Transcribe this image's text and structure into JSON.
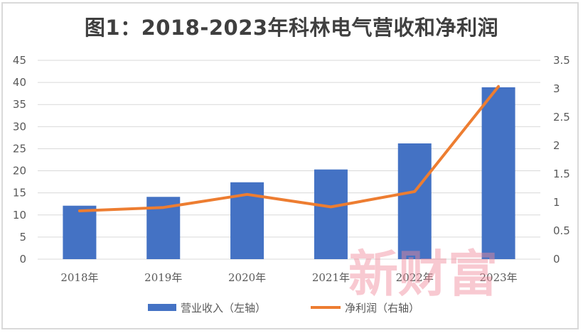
{
  "title": "图1：2018-2023年科林电气营收和净利润",
  "watermark": "新财富",
  "colors": {
    "bar": "#4472c4",
    "line": "#ed7d31",
    "grid": "#d9d9d9",
    "axis_text": "#595959",
    "watermark": "#f08a9a"
  },
  "legend": [
    {
      "label": "营业收入（左轴）",
      "type": "bar",
      "color": "#4472c4"
    },
    {
      "label": "净利润（右轴）",
      "type": "line",
      "color": "#ed7d31"
    }
  ],
  "chart_data": {
    "type": "bar+line",
    "title": "图1：2018-2023年科林电气营收和净利润",
    "categories": [
      "2018年",
      "2019年",
      "2020年",
      "2021年",
      "2022年",
      "2023年"
    ],
    "series": [
      {
        "name": "营业收入（左轴）",
        "type": "bar",
        "axis": "left",
        "values": [
          12.1,
          14.1,
          17.4,
          20.3,
          26.2,
          38.9
        ]
      },
      {
        "name": "净利润（右轴）",
        "type": "line",
        "axis": "right",
        "values": [
          0.85,
          0.91,
          1.14,
          0.92,
          1.19,
          3.04
        ]
      }
    ],
    "y_left": {
      "min": 0,
      "max": 45,
      "step": 5,
      "ticks": [
        "0",
        "5",
        "10",
        "15",
        "20",
        "25",
        "30",
        "35",
        "40",
        "45"
      ]
    },
    "y_right": {
      "min": 0,
      "max": 3.5,
      "step": 0.5,
      "ticks": [
        "0",
        "0.5",
        "1",
        "1.5",
        "2",
        "2.5",
        "3",
        "3.5"
      ]
    },
    "grid": true,
    "legend_position": "bottom"
  }
}
